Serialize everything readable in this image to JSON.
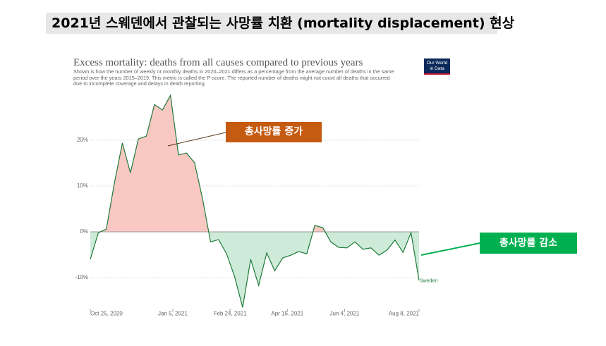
{
  "slide_title": "2021년 스웨덴에서 관찰되는 사망률 치환 (mortality displacement) 현상",
  "chart_data": {
    "type": "line",
    "title": "Excess mortality: deaths from all causes compared to previous years",
    "subtitle": "Shown is how the number of weekly or monthly deaths in 2020–2021 differs as a percentage from the average number of deaths in the same period over the years 2015–2019. This metric is called the P-score. The reported number of deaths might not count all deaths that occurred due to incomplete coverage and delays in death reporting.",
    "logo": [
      "Our World",
      "in Data"
    ],
    "x": [
      "2020-10-25",
      "2020-11-01",
      "2020-11-08",
      "2020-11-15",
      "2020-11-22",
      "2020-11-29",
      "2020-12-06",
      "2020-12-13",
      "2020-12-20",
      "2020-12-27",
      "2021-01-03",
      "2021-01-10",
      "2021-01-17",
      "2021-01-24",
      "2021-01-31",
      "2021-02-07",
      "2021-02-14",
      "2021-02-21",
      "2021-02-28",
      "2021-03-07",
      "2021-03-14",
      "2021-03-21",
      "2021-03-28",
      "2021-04-04",
      "2021-04-11",
      "2021-04-18",
      "2021-04-25",
      "2021-05-02",
      "2021-05-09",
      "2021-05-16",
      "2021-05-23",
      "2021-05-30",
      "2021-06-06",
      "2021-06-13",
      "2021-06-20",
      "2021-06-27",
      "2021-07-04",
      "2021-07-11",
      "2021-07-18",
      "2021-07-25",
      "2021-08-01",
      "2021-08-08"
    ],
    "series": [
      {
        "name": "Sweden",
        "color": "#1f7a3a",
        "values": [
          -6.0,
          -0.2,
          0.6,
          10.6,
          19.4,
          12.9,
          20.3,
          20.9,
          27.8,
          26.6,
          29.8,
          16.8,
          17.2,
          15.1,
          7.2,
          -2.2,
          -1.7,
          -4.8,
          -9.8,
          -16.5,
          -6.0,
          -11.7,
          -4.6,
          -8.5,
          -5.7,
          -5.1,
          -4.3,
          -4.8,
          1.4,
          0.9,
          -2.2,
          -3.4,
          -3.5,
          -2.2,
          -3.8,
          -3.5,
          -5.1,
          -4.0,
          -1.8,
          -4.5,
          -0.2,
          -10.6
        ]
      }
    ],
    "xlim": [
      "2020-10-25",
      "2021-08-08"
    ],
    "xticks": [
      {
        "value": "2020-10-25",
        "label": "Oct 25, 2020"
      },
      {
        "value": "2021-01-05",
        "label": "Jan 5, 2021"
      },
      {
        "value": "2021-02-24",
        "label": "Feb 24, 2021"
      },
      {
        "value": "2021-04-15",
        "label": "Apr 15, 2021"
      },
      {
        "value": "2021-06-04",
        "label": "Jun 4, 2021"
      },
      {
        "value": "2021-08-08",
        "label": "Aug 8, 2021"
      }
    ],
    "ylim": [
      -17,
      30
    ],
    "yticks": [
      {
        "value": -10,
        "label": "-10%"
      },
      {
        "value": 0,
        "label": "0%"
      },
      {
        "value": 10,
        "label": "10%"
      },
      {
        "value": 20,
        "label": "20%"
      }
    ],
    "grid": true,
    "positive_fill": "#f9c8c2",
    "negative_fill": "#cdebd8",
    "annotations": [
      {
        "text": "총사망률 증가",
        "color": "#c55a11"
      },
      {
        "text": "총사망률 감소",
        "color": "#00b050"
      }
    ]
  }
}
